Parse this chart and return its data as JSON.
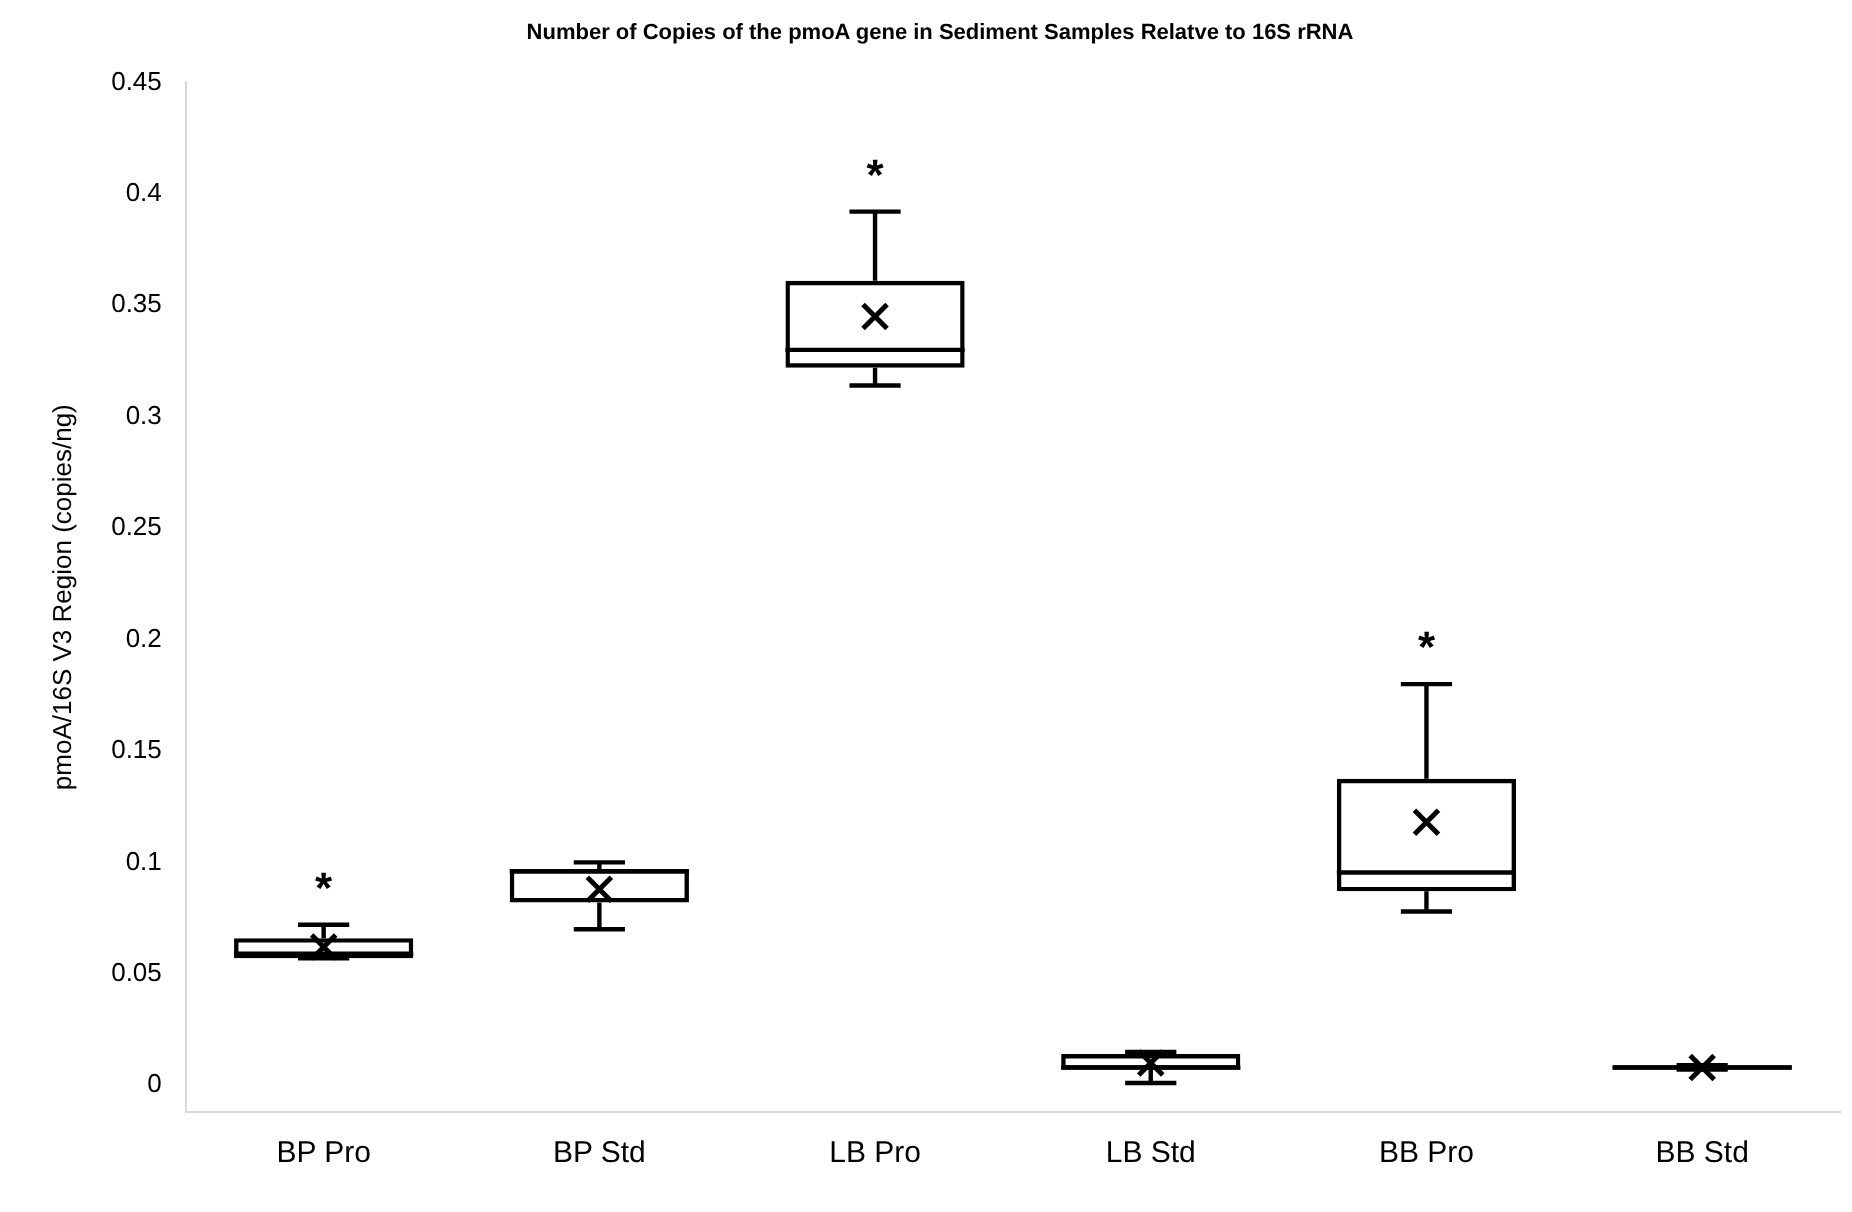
{
  "chart_data": {
    "type": "box",
    "title": "Number of Copies of the pmoA gene in Sediment Samples Relatve to 16S rRNA",
    "ylabel": "pmoA/16S V3 Region (copies/ng)",
    "categories": [
      "BP Pro",
      "BP Std",
      "LB Pro",
      "LB Std",
      "BB Pro",
      "BB Std"
    ],
    "boxes": [
      {
        "low": 0.057,
        "q1": 0.057,
        "median": 0.059,
        "q3": 0.066,
        "high": 0.072,
        "mean": 0.062
      },
      {
        "low": 0.07,
        "q1": 0.082,
        "median": 0.096,
        "q3": 0.097,
        "high": 0.1,
        "mean": 0.088
      },
      {
        "low": 0.314,
        "q1": 0.322,
        "median": 0.33,
        "q3": 0.361,
        "high": 0.392,
        "mean": 0.345
      },
      {
        "low": 0.001,
        "q1": 0.007,
        "median": 0.008,
        "q3": 0.014,
        "high": 0.015,
        "mean": 0.01
      },
      {
        "low": 0.078,
        "q1": 0.087,
        "median": 0.0955,
        "q3": 0.1375,
        "high": 0.18,
        "mean": 0.118
      },
      {
        "low": 0.007,
        "q1": 0.007,
        "median": 0.008,
        "q3": 0.009,
        "high": 0.009,
        "mean": 0.008
      }
    ],
    "color": "#000000",
    "ylim": [
      -0.012,
      0.45
    ],
    "yticks": [
      0,
      0.05,
      0.1,
      0.15,
      0.2,
      0.25,
      0.3,
      0.35,
      0.4,
      0.45
    ],
    "grid": false,
    "legend": false,
    "annotations": [
      {
        "text": "*",
        "x": "BP Pro",
        "y": 0.072
      },
      {
        "text": "*",
        "x": "LB Pro",
        "y": 0.392
      },
      {
        "text": "*",
        "x": "BB Pro",
        "y": 0.18
      }
    ]
  }
}
